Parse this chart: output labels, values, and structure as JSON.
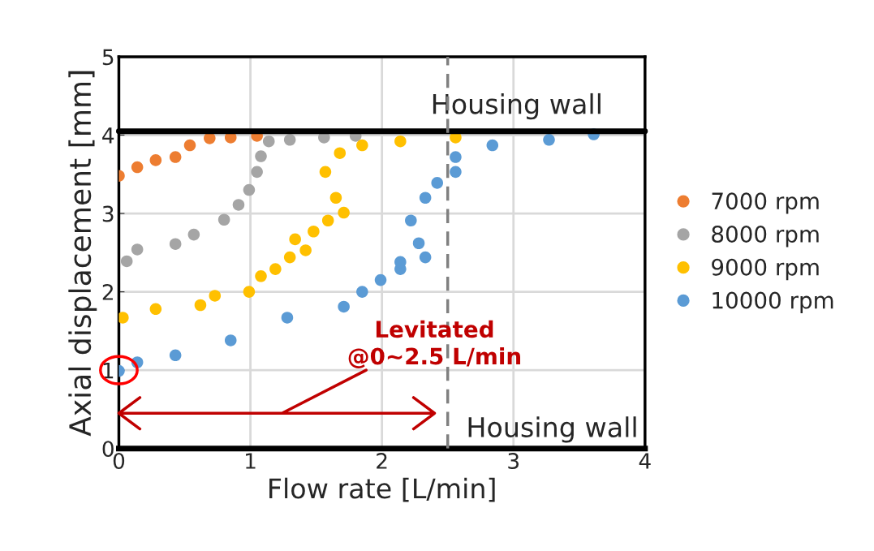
{
  "chart_data": {
    "type": "scatter",
    "xlabel": "Flow rate [L/min]",
    "ylabel": "Axial displacement [mm]",
    "xlim": [
      0,
      4
    ],
    "ylim": [
      0,
      5
    ],
    "xticks": [
      0,
      1,
      2,
      3,
      4
    ],
    "yticks": [
      0,
      1,
      2,
      3,
      4,
      5
    ],
    "grid": true,
    "legend": "right",
    "marker": "circle",
    "series": [
      {
        "name": "7000 rpm",
        "color": "#ed7d31",
        "x": [
          0,
          0.14,
          0.28,
          0.43,
          0.54,
          0.69,
          0.85,
          1.05
        ],
        "values": [
          3.48,
          3.59,
          3.68,
          3.72,
          3.87,
          3.96,
          3.97,
          3.99
        ]
      },
      {
        "name": "8000 rpm",
        "color": "#a5a5a5",
        "x": [
          0.06,
          0.14,
          0.43,
          0.57,
          0.8,
          0.91,
          0.99,
          1.05,
          1.08,
          1.14,
          1.3,
          1.56,
          1.8
        ],
        "values": [
          2.39,
          2.54,
          2.61,
          2.73,
          2.92,
          3.11,
          3.3,
          3.53,
          3.73,
          3.92,
          3.94,
          3.97,
          3.99
        ]
      },
      {
        "name": "9000 rpm",
        "color": "#ffc000",
        "x": [
          0.03,
          0.28,
          0.62,
          0.73,
          0.99,
          1.08,
          1.19,
          1.3,
          1.42,
          1.34,
          1.48,
          1.59,
          1.71,
          1.65,
          1.57,
          1.68,
          1.85,
          2.14,
          2.56
        ],
        "values": [
          1.67,
          1.78,
          1.83,
          1.95,
          2.0,
          2.2,
          2.29,
          2.44,
          2.53,
          2.67,
          2.77,
          2.91,
          3.01,
          3.2,
          3.53,
          3.77,
          3.87,
          3.92,
          3.97
        ]
      },
      {
        "name": "10000 rpm",
        "color": "#5b9bd5",
        "x": [
          0,
          0.14,
          0.43,
          0.85,
          1.28,
          1.71,
          1.85,
          1.99,
          2.14,
          2.33,
          2.14,
          2.28,
          2.22,
          2.33,
          2.42,
          2.56,
          2.56,
          2.84,
          3.27,
          3.61
        ],
        "values": [
          0.99,
          1.1,
          1.19,
          1.38,
          1.67,
          1.81,
          2.0,
          2.15,
          2.29,
          2.44,
          2.38,
          2.62,
          2.91,
          3.2,
          3.39,
          3.53,
          3.72,
          3.87,
          3.94,
          4.01
        ]
      }
    ],
    "ref_lines": [
      {
        "axis": "y",
        "value": 4.05,
        "label": "Housing wall",
        "color": "#000000",
        "line_style": "solid"
      },
      {
        "axis": "x",
        "value": 2.5,
        "color": "#808080",
        "line_style": "dashed"
      }
    ],
    "annotations": [
      "Levitated\n@0~2.5 L/min",
      "Housing wall"
    ]
  }
}
